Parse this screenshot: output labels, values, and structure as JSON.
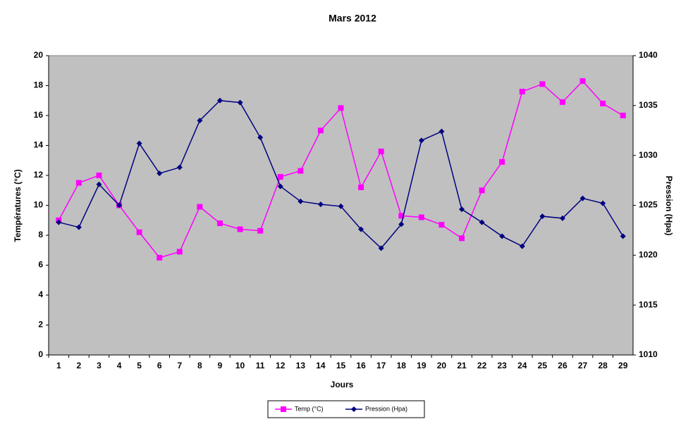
{
  "chart_data": {
    "type": "line",
    "title": "Mars 2012",
    "x_label": "Jours",
    "y_label": "Températures (°C)",
    "y2_label": "Pression (Hpa)",
    "categories": [
      "1",
      "2",
      "3",
      "4",
      "5",
      "6",
      "7",
      "8",
      "9",
      "10",
      "11",
      "12",
      "13",
      "14",
      "15",
      "16",
      "17",
      "18",
      "19",
      "20",
      "21",
      "22",
      "23",
      "24",
      "25",
      "26",
      "27",
      "28",
      "29"
    ],
    "series": [
      {
        "name": "Temp (°C)",
        "color": "#ff00ff",
        "marker": "square",
        "values": [
          9.0,
          11.5,
          12.0,
          10.0,
          8.2,
          6.5,
          6.9,
          9.9,
          8.8,
          8.4,
          8.3,
          11.9,
          12.3,
          15.0,
          16.5,
          11.2,
          13.6,
          9.3,
          9.2,
          8.7,
          7.8,
          11.0,
          12.9,
          17.6,
          18.1,
          16.9,
          18.3,
          16.8,
          16.0
        ]
      },
      {
        "name": "Pression (Hpa)",
        "color": "#000080",
        "marker": "diamond",
        "axis": "y2",
        "values": [
          1023.3,
          1022.8,
          1027.1,
          1025.0,
          1031.2,
          1028.2,
          1028.8,
          1033.5,
          1035.5,
          1035.3,
          1031.8,
          1026.9,
          1025.4,
          1025.1,
          1024.9,
          1022.6,
          1020.7,
          1023.1,
          1031.5,
          1032.4,
          1024.6,
          1023.3,
          1021.9,
          1020.9,
          1023.9,
          1023.7,
          1025.7,
          1025.2,
          1021.9
        ]
      }
    ],
    "ylim": [
      0,
      20
    ],
    "yticks": [
      0,
      2,
      4,
      6,
      8,
      10,
      12,
      14,
      16,
      18,
      20
    ],
    "y2lim": [
      1010,
      1040
    ],
    "y2ticks": [
      1010,
      1015,
      1020,
      1025,
      1030,
      1035,
      1040
    ],
    "plot_background": "#c0c0c0",
    "legend": "bottom"
  }
}
